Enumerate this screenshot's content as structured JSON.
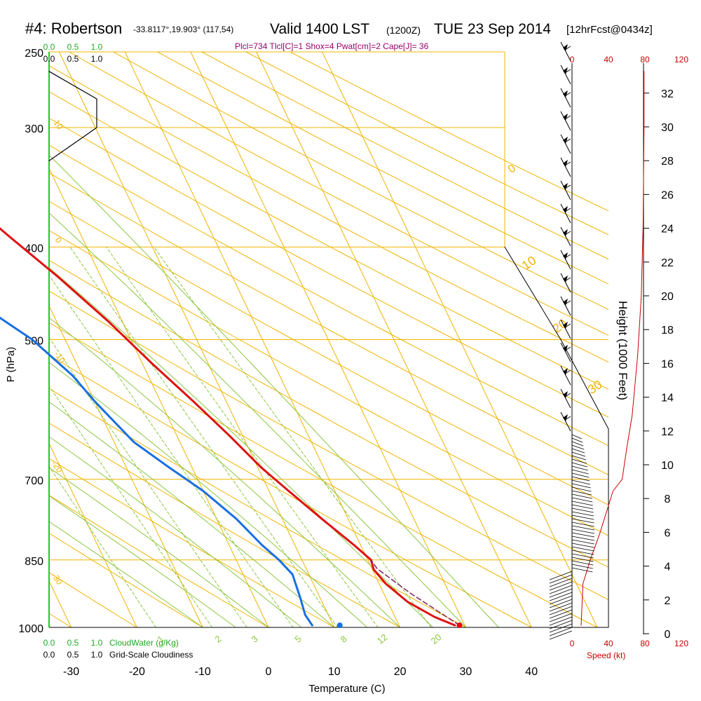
{
  "header": {
    "station": "#4: Robertson",
    "coords": "-33.8117°,19.903° (117,54)",
    "valid": "Valid 1400 LST",
    "utc": "(1200Z)",
    "date": "TUE 23 Sep 2014",
    "forecast": "[12hrFcst@0434z]",
    "indices": "Plcl=734 Tlcl[C]=1 Shox=4 Pwat[cm]=2 Cape[J]= 36"
  },
  "colors": {
    "temperature": "#e01010",
    "dewpoint": "#1a6fe0",
    "isobar": "#f0b400",
    "isotherm": "#f0b400",
    "dry_adiabat": "#f0b400",
    "moist_adiabat": "#8cc63f",
    "mixing_ratio": "#8cc63f",
    "parcel": "#802060",
    "speed": "#cc0000",
    "cloudwater": "#22aa22",
    "indices": "#990066"
  },
  "chart_data": {
    "type": "line",
    "title": "#4: Robertson",
    "xlabel": "Temperature (C)",
    "ylabel": "P (hPa)",
    "right_ylabel": "Height (1000 Feet)",
    "speed_label": "Speed (kt)",
    "x_ticks": [
      -30,
      -20,
      -10,
      0,
      10,
      20,
      30,
      40
    ],
    "x_tick_labels": [
      "-30",
      "-20",
      "-10",
      "0",
      "10",
      "20",
      "30",
      "40"
    ],
    "p_levels": [
      250,
      300,
      400,
      500,
      700,
      850,
      1000
    ],
    "p_level_labels": [
      "250",
      "300",
      "400",
      "500",
      "700",
      "850",
      "1000"
    ],
    "height_ticks": [
      0,
      2,
      4,
      6,
      8,
      10,
      12,
      14,
      16,
      18,
      20,
      22,
      24,
      26,
      28,
      30,
      32
    ],
    "height_tick_labels": [
      "0",
      "2",
      "4",
      "6",
      "8",
      "10",
      "12",
      "14",
      "16",
      "18",
      "20",
      "22",
      "24",
      "26",
      "28",
      "30",
      "32"
    ],
    "speed_ticks": [
      0,
      40,
      80,
      120
    ],
    "speed_tick_labels": [
      "0",
      "40",
      "80",
      "120"
    ],
    "cloud_ticks": [
      0.0,
      0.5,
      1.0
    ],
    "cloud_tick_labels": [
      "0.0",
      "0.5",
      "1.0"
    ],
    "cloudwater_label": "CloudWater (g/Kg)",
    "cloudiness_label": "Grid-Scale Cloudiness",
    "mixing_ratio_labels": [
      "1",
      "2",
      "3",
      "5",
      "8",
      "12",
      "20"
    ],
    "dry_adiabat_labels": [
      "0",
      "10",
      "20",
      "30"
    ],
    "isotherm_side_labels": [
      "10",
      "0",
      "-10",
      "-20",
      "-30"
    ],
    "series": [
      {
        "name": "Temperature",
        "points": [
          [
            28.5,
            995
          ],
          [
            26,
            975
          ],
          [
            23,
            940
          ],
          [
            21,
            900
          ],
          [
            20.2,
            870
          ],
          [
            20.5,
            850
          ],
          [
            19,
            820
          ],
          [
            16,
            770
          ],
          [
            13,
            720
          ],
          [
            10.5,
            680
          ],
          [
            8,
            630
          ],
          [
            5,
            580
          ],
          [
            1.5,
            530
          ],
          [
            -2,
            480
          ],
          [
            -6.5,
            430
          ],
          [
            -11,
            390
          ],
          [
            -17,
            340
          ],
          [
            -22,
            300
          ],
          [
            -26,
            270
          ],
          [
            -27,
            257
          ]
        ]
      },
      {
        "name": "Dewpoint",
        "points": [
          [
            6.8,
            995
          ],
          [
            6.5,
            970
          ],
          [
            7,
            930
          ],
          [
            7.5,
            880
          ],
          [
            6.5,
            850
          ],
          [
            5,
            820
          ],
          [
            3,
            770
          ],
          [
            0,
            720
          ],
          [
            -3.5,
            680
          ],
          [
            -7,
            640
          ],
          [
            -10,
            580
          ],
          [
            -11.5,
            545
          ],
          [
            -15,
            500
          ],
          [
            -21,
            455
          ],
          [
            -27,
            420
          ],
          [
            -30,
            390
          ],
          [
            -32,
            355
          ],
          [
            -33.8,
            330
          ],
          [
            -35,
            300
          ],
          [
            -38.5,
            265
          ]
        ]
      },
      {
        "name": "Parcel",
        "points": [
          [
            29.2,
            995
          ],
          [
            24,
            920
          ],
          [
            20.8,
            868
          ],
          [
            20.5,
            850
          ]
        ]
      },
      {
        "name": "Speed",
        "points": [
          [
            10,
            995
          ],
          [
            12,
            900
          ],
          [
            20,
            850
          ],
          [
            30,
            800
          ],
          [
            45,
            720
          ],
          [
            55,
            700
          ],
          [
            60,
            650
          ],
          [
            66,
            600
          ],
          [
            72,
            520
          ],
          [
            76,
            450
          ],
          [
            78,
            380
          ],
          [
            79,
            300
          ],
          [
            79,
            262
          ]
        ]
      },
      {
        "name": "Cloudiness",
        "points": [
          [
            0,
            262
          ],
          [
            0.5,
            280
          ],
          [
            0.5,
            300
          ],
          [
            0,
            325
          ]
        ]
      }
    ],
    "surface_temperature": [
      29.2,
      995
    ],
    "surface_dewpoint": [
      11,
      995
    ],
    "xlim": [
      -35,
      35
    ],
    "ylim": [
      1000,
      250
    ],
    "grid": true
  },
  "labels": {
    "x_axis": "Temperature (C)",
    "y_axis": "P (hPa)",
    "height_axis": "Height (1000 Feet)",
    "speed_axis": "Speed (kt)"
  }
}
